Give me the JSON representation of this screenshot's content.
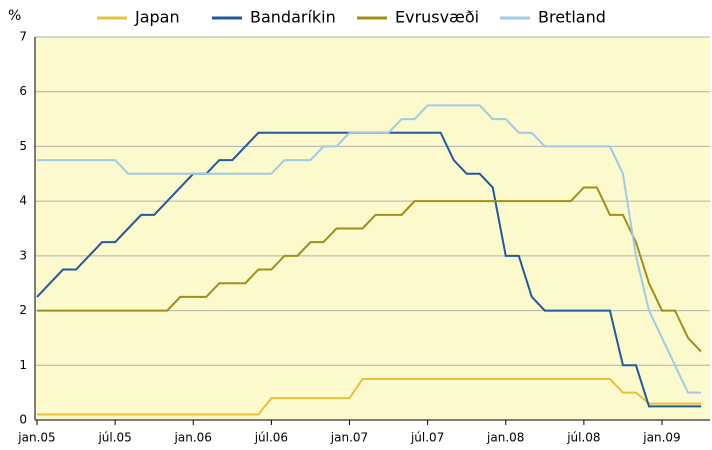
{
  "chart_data": {
    "type": "line",
    "y_label": "%",
    "categories": [
      "jan.05",
      null,
      null,
      null,
      null,
      null,
      "júl.05",
      null,
      null,
      null,
      null,
      null,
      "jan.06",
      null,
      null,
      null,
      null,
      null,
      "júl.06",
      null,
      null,
      null,
      null,
      null,
      "jan.07",
      null,
      null,
      null,
      null,
      null,
      "júl.07",
      null,
      null,
      null,
      null,
      null,
      "jan.08",
      null,
      null,
      null,
      null,
      null,
      "júl.08",
      null,
      null,
      null,
      null,
      null,
      "jan.09",
      null,
      null,
      null
    ],
    "series": [
      {
        "name": "Japan",
        "color": "#e6c13c",
        "values": [
          0.1,
          0.1,
          0.1,
          0.1,
          0.1,
          0.1,
          0.1,
          0.1,
          0.1,
          0.1,
          0.1,
          0.1,
          0.1,
          0.1,
          0.1,
          0.1,
          0.1,
          0.1,
          0.4,
          0.4,
          0.4,
          0.4,
          0.4,
          0.4,
          0.4,
          0.75,
          0.75,
          0.75,
          0.75,
          0.75,
          0.75,
          0.75,
          0.75,
          0.75,
          0.75,
          0.75,
          0.75,
          0.75,
          0.75,
          0.75,
          0.75,
          0.75,
          0.75,
          0.75,
          0.75,
          0.5,
          0.5,
          0.3,
          0.3,
          0.3,
          0.3,
          0.3
        ]
      },
      {
        "name": "Bandaríkin",
        "color": "#1f5aa0",
        "values": [
          2.25,
          2.5,
          2.75,
          2.75,
          3.0,
          3.25,
          3.25,
          3.5,
          3.75,
          3.75,
          4.0,
          4.25,
          4.5,
          4.5,
          4.75,
          4.75,
          5.0,
          5.25,
          5.25,
          5.25,
          5.25,
          5.25,
          5.25,
          5.25,
          5.25,
          5.25,
          5.25,
          5.25,
          5.25,
          5.25,
          5.25,
          5.25,
          4.75,
          4.5,
          4.5,
          4.25,
          3.0,
          3.0,
          2.25,
          2.0,
          2.0,
          2.0,
          2.0,
          2.0,
          2.0,
          1.0,
          1.0,
          0.25,
          0.25,
          0.25,
          0.25,
          0.25
        ]
      },
      {
        "name": "Evrusvæði",
        "color": "#a08f14",
        "values": [
          2.0,
          2.0,
          2.0,
          2.0,
          2.0,
          2.0,
          2.0,
          2.0,
          2.0,
          2.0,
          2.0,
          2.25,
          2.25,
          2.25,
          2.5,
          2.5,
          2.5,
          2.75,
          2.75,
          3.0,
          3.0,
          3.25,
          3.25,
          3.5,
          3.5,
          3.5,
          3.75,
          3.75,
          3.75,
          4.0,
          4.0,
          4.0,
          4.0,
          4.0,
          4.0,
          4.0,
          4.0,
          4.0,
          4.0,
          4.0,
          4.0,
          4.0,
          4.25,
          4.25,
          3.75,
          3.75,
          3.25,
          2.5,
          2.0,
          2.0,
          1.5,
          1.25
        ]
      },
      {
        "name": "Bretland",
        "color": "#9dcbe8",
        "values": [
          4.75,
          4.75,
          4.75,
          4.75,
          4.75,
          4.75,
          4.75,
          4.5,
          4.5,
          4.5,
          4.5,
          4.5,
          4.5,
          4.5,
          4.5,
          4.5,
          4.5,
          4.5,
          4.5,
          4.75,
          4.75,
          4.75,
          5.0,
          5.0,
          5.25,
          5.25,
          5.25,
          5.25,
          5.5,
          5.5,
          5.75,
          5.75,
          5.75,
          5.75,
          5.75,
          5.5,
          5.5,
          5.25,
          5.25,
          5.0,
          5.0,
          5.0,
          5.0,
          5.0,
          5.0,
          4.5,
          3.0,
          2.0,
          1.5,
          1.0,
          0.5,
          0.5
        ]
      }
    ],
    "ylim": [
      0,
      7
    ],
    "yticks": [
      0,
      1,
      2,
      3,
      4,
      5,
      6,
      7
    ],
    "grid": true,
    "legend": "top"
  }
}
